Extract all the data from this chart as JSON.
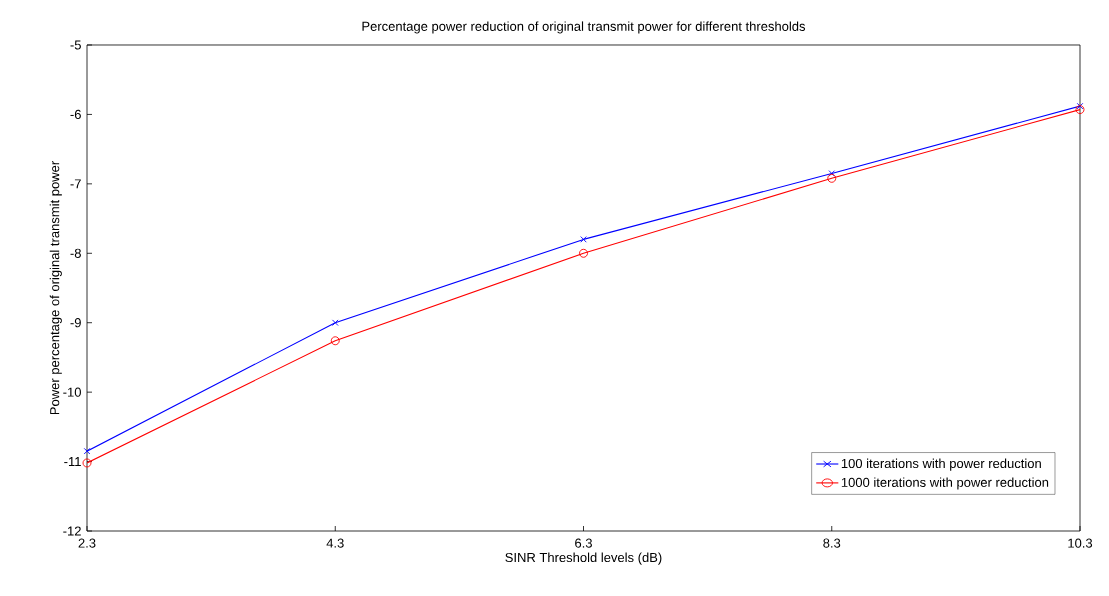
{
  "chart_data": {
    "type": "line",
    "title": "Percentage power reduction of original transmit power for different thresholds",
    "xlabel": "SINR Threshold levels (dB)",
    "ylabel": "Power percentage of original transmit power",
    "x": [
      2.3,
      4.3,
      6.3,
      8.3,
      10.3
    ],
    "series": [
      {
        "name": "100 iterations with power reduction",
        "color": "#0000ff",
        "marker": "cross",
        "values": [
          -10.85,
          -9.0,
          -7.8,
          -6.85,
          -5.88
        ]
      },
      {
        "name": "1000 iterations with power reduction",
        "color": "#ff0000",
        "marker": "circle",
        "values": [
          -11.02,
          -9.26,
          -8.0,
          -6.92,
          -5.93
        ]
      }
    ],
    "xlim": [
      2.3,
      10.3
    ],
    "xticks": [
      2.3,
      4.3,
      6.3,
      8.3,
      10.3
    ],
    "ylim": [
      -12,
      -5
    ],
    "yticks": [
      -12,
      -11,
      -10,
      -9,
      -8,
      -7,
      -6,
      -5
    ],
    "grid": false,
    "legend": "bottom right",
    "line_style": "solid"
  }
}
